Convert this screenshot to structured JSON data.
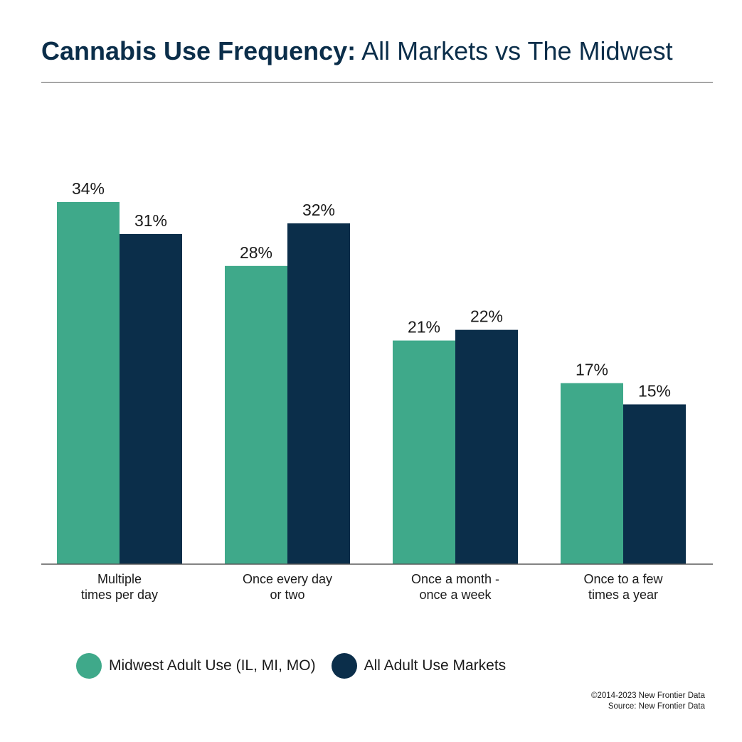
{
  "title": {
    "bold_part": "Cannabis Use Frequency:",
    "light_part": "All Markets vs The Midwest"
  },
  "colors": {
    "midwest": "#3fa98a",
    "all_markets": "#0b2e4a",
    "title": "#0b2e4a"
  },
  "chart_data": {
    "type": "bar",
    "categories": [
      [
        "Multiple",
        "times per day"
      ],
      [
        "Once every day",
        "or two"
      ],
      [
        "Once a month -",
        "once a week"
      ],
      [
        "Once to a few",
        "times a year"
      ]
    ],
    "series": [
      {
        "name": "Midwest Adult Use (IL, MI, MO)",
        "values": [
          34,
          28,
          21,
          17
        ],
        "labels": [
          "34%",
          "28%",
          "21%",
          "17%"
        ]
      },
      {
        "name": "All Adult Use Markets",
        "values": [
          31,
          32,
          22,
          15
        ],
        "labels": [
          "31%",
          "32%",
          "22%",
          "15%"
        ]
      }
    ],
    "ylim": [
      0,
      34
    ],
    "grid": false,
    "legend_position": "bottom-left"
  },
  "source": {
    "copyright": "©2014-2023  New Frontier Data",
    "source_line": "Source: New Frontier Data"
  }
}
